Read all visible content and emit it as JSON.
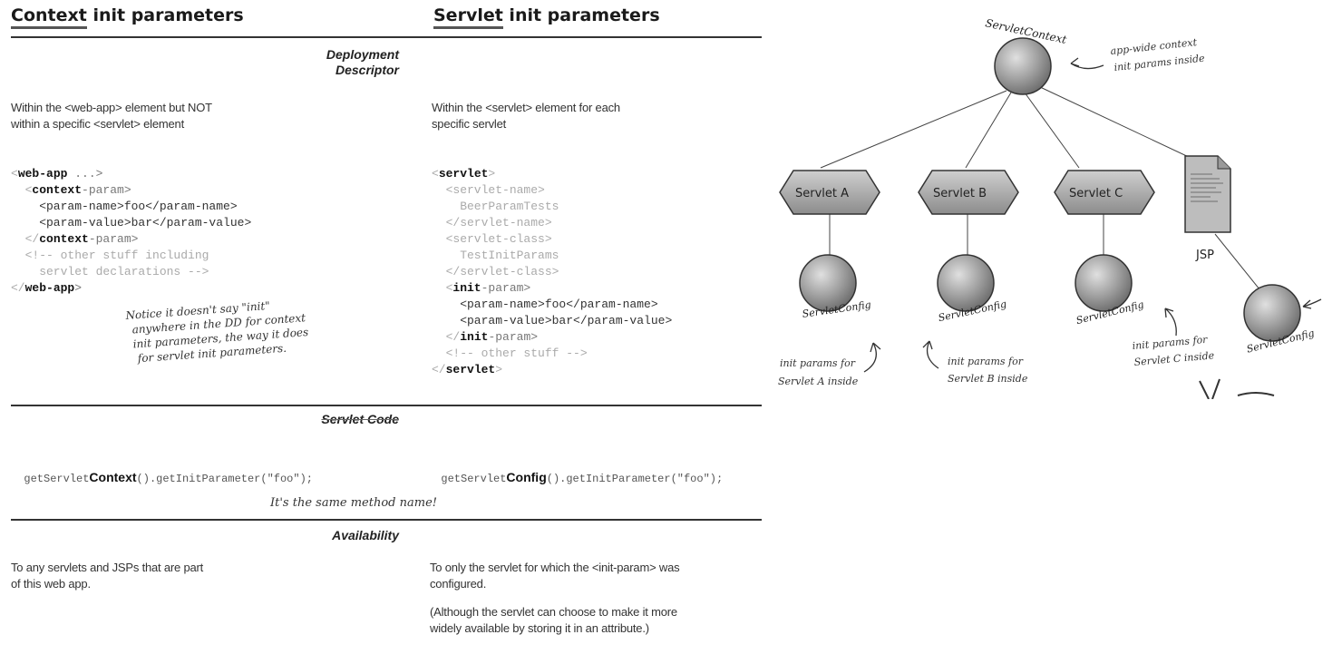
{
  "headers": {
    "context": {
      "emph": "Context",
      "rest": " init parameters"
    },
    "servlet": {
      "emph": "Servlet",
      "rest": " init parameters"
    }
  },
  "deployment": {
    "title_line1": "Deployment",
    "title_line2": "Descriptor",
    "context_desc_1": "Within the <web-app> element but NOT",
    "context_desc_2": "within a specific <servlet> element",
    "servlet_desc_1": "Within the <servlet> element for each",
    "servlet_desc_2": "specific servlet",
    "context_code": {
      "l1_open": "<",
      "l1_tag": "web-app",
      "l1_rest": " ...>",
      "l2_open": "  <",
      "l2_tag": "context",
      "l2_rest": "-param>",
      "l3": "    <param-name>foo</param-name>",
      "l4": "    <param-value>bar</param-value>",
      "l5_open": "  </",
      "l5_tag": "context",
      "l5_rest": "-param>",
      "l6": "",
      "l7": "  <!-- other stuff including",
      "l8": "    servlet declarations -->",
      "l9_open": "</",
      "l9_tag": "web-app",
      "l9_rest": ">"
    },
    "servlet_code": {
      "l1_open": "<",
      "l1_tag": "servlet",
      "l1_rest": ">",
      "l2": "  <servlet-name>",
      "l3": "    BeerParamTests",
      "l4": "  </servlet-name>",
      "l5": "  <servlet-class>",
      "l6": "    TestInitParams",
      "l7": "  </servlet-class>",
      "l8_open": "  <",
      "l8_tag": "init",
      "l8_rest": "-param>",
      "l9": "    <param-name>foo</param-name>",
      "l10": "    <param-value>bar</param-value>",
      "l11_open": "  </",
      "l11_tag": "init",
      "l11_rest": "-param>",
      "l12": "",
      "l13": "  <!-- other stuff -->",
      "l14_open": "</",
      "l14_tag": "servlet",
      "l14_rest": ">"
    },
    "note_1": "Notice it doesn't say \"init\"",
    "note_2": "anywhere in the DD for context",
    "note_3": "init parameters, the way it does",
    "note_4": "for servlet init parameters."
  },
  "code_section": {
    "title": "Servlet Code",
    "context_pre": "getServlet",
    "context_bold": "Context",
    "context_post": "().getInitParameter(\"foo\");",
    "servlet_pre": "getServlet",
    "servlet_bold": "Config",
    "servlet_post": "().getInitParameter(\"foo\");",
    "note": "It's the same method name!"
  },
  "availability": {
    "title": "Availability",
    "context_1": "To any servlets and JSPs that are part",
    "context_2": "of this web app.",
    "servlet_1": "To only the servlet for which the <init-param> was",
    "servlet_2": "configured.",
    "servlet_3": "(Although the servlet can choose to make it more",
    "servlet_4": "widely available by storing it in an attribute.)"
  },
  "diagram": {
    "context_label": "ServletContext",
    "context_note_1": "app-wide context",
    "context_note_2": "init params inside",
    "servlet_a": "Servlet A",
    "servlet_b": "Servlet B",
    "servlet_c": "Servlet C",
    "jsp": "JSP",
    "config_label": "ServletConfig",
    "note_a_1": "init params for",
    "note_a_2": "Servlet A inside",
    "note_b_1": "init params for",
    "note_b_2": "Servlet B inside",
    "note_c_1": "init params for",
    "note_c_2": "Servlet C inside"
  }
}
